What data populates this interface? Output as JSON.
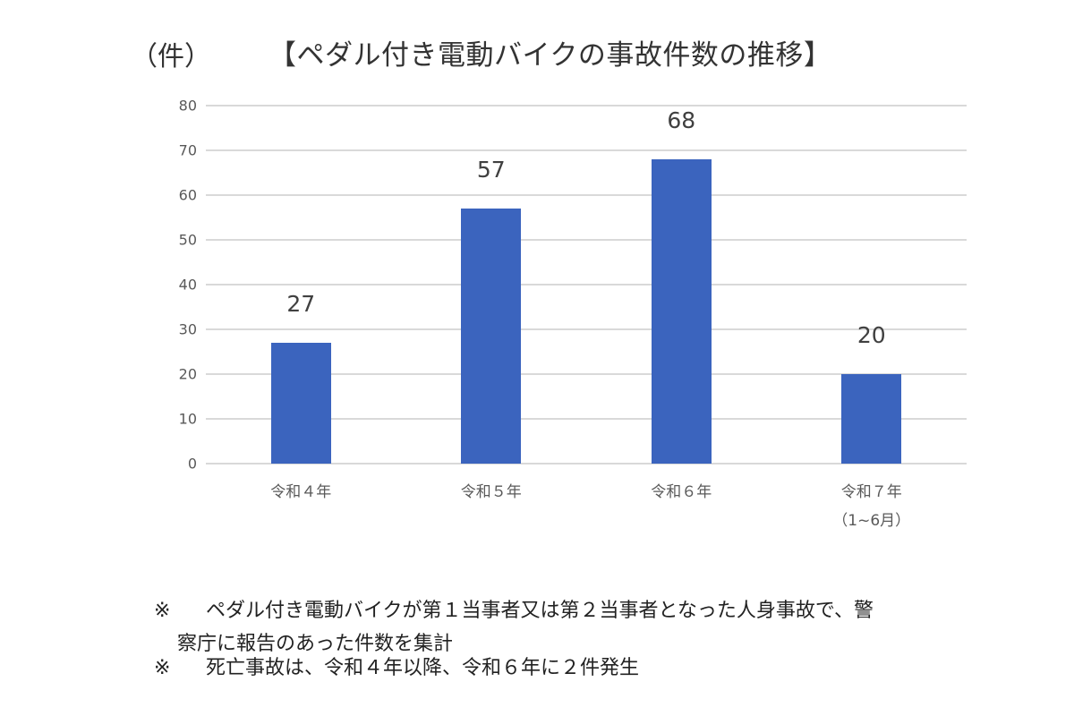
{
  "header": {
    "unit_label": "（件）",
    "title": "【ペダル付き電動バイクの事故件数の推移】"
  },
  "notes": [
    {
      "mark": "※",
      "line1": "ペダル付き電動バイクが第１当事者又は第２当事者となった人身事故で、警",
      "line2": "察庁に報告のあった件数を集計"
    },
    {
      "mark": "※",
      "line1": "死亡事故は、令和４年以降、令和６年に２件発生"
    }
  ],
  "colors": {
    "bar": "#3b64be",
    "grid": "#d9d9d9"
  },
  "chart_data": {
    "type": "bar",
    "title": "【ペダル付き電動バイクの事故件数の推移】",
    "xlabel": "",
    "ylabel": "（件）",
    "ylim": [
      0,
      80
    ],
    "yticks": [
      0,
      10,
      20,
      30,
      40,
      50,
      60,
      70,
      80
    ],
    "grid": true,
    "legend": null,
    "categories": [
      "令和４年",
      "令和５年",
      "令和６年",
      "令和７年（1~6月）"
    ],
    "category_labels": [
      {
        "line1": "令和４年",
        "line2": ""
      },
      {
        "line1": "令和５年",
        "line2": ""
      },
      {
        "line1": "令和６年",
        "line2": ""
      },
      {
        "line1": "令和７年",
        "line2": "（1~6月）"
      }
    ],
    "values": [
      27,
      57,
      68,
      20
    ],
    "data_labels": [
      "27",
      "57",
      "68",
      "20"
    ]
  }
}
